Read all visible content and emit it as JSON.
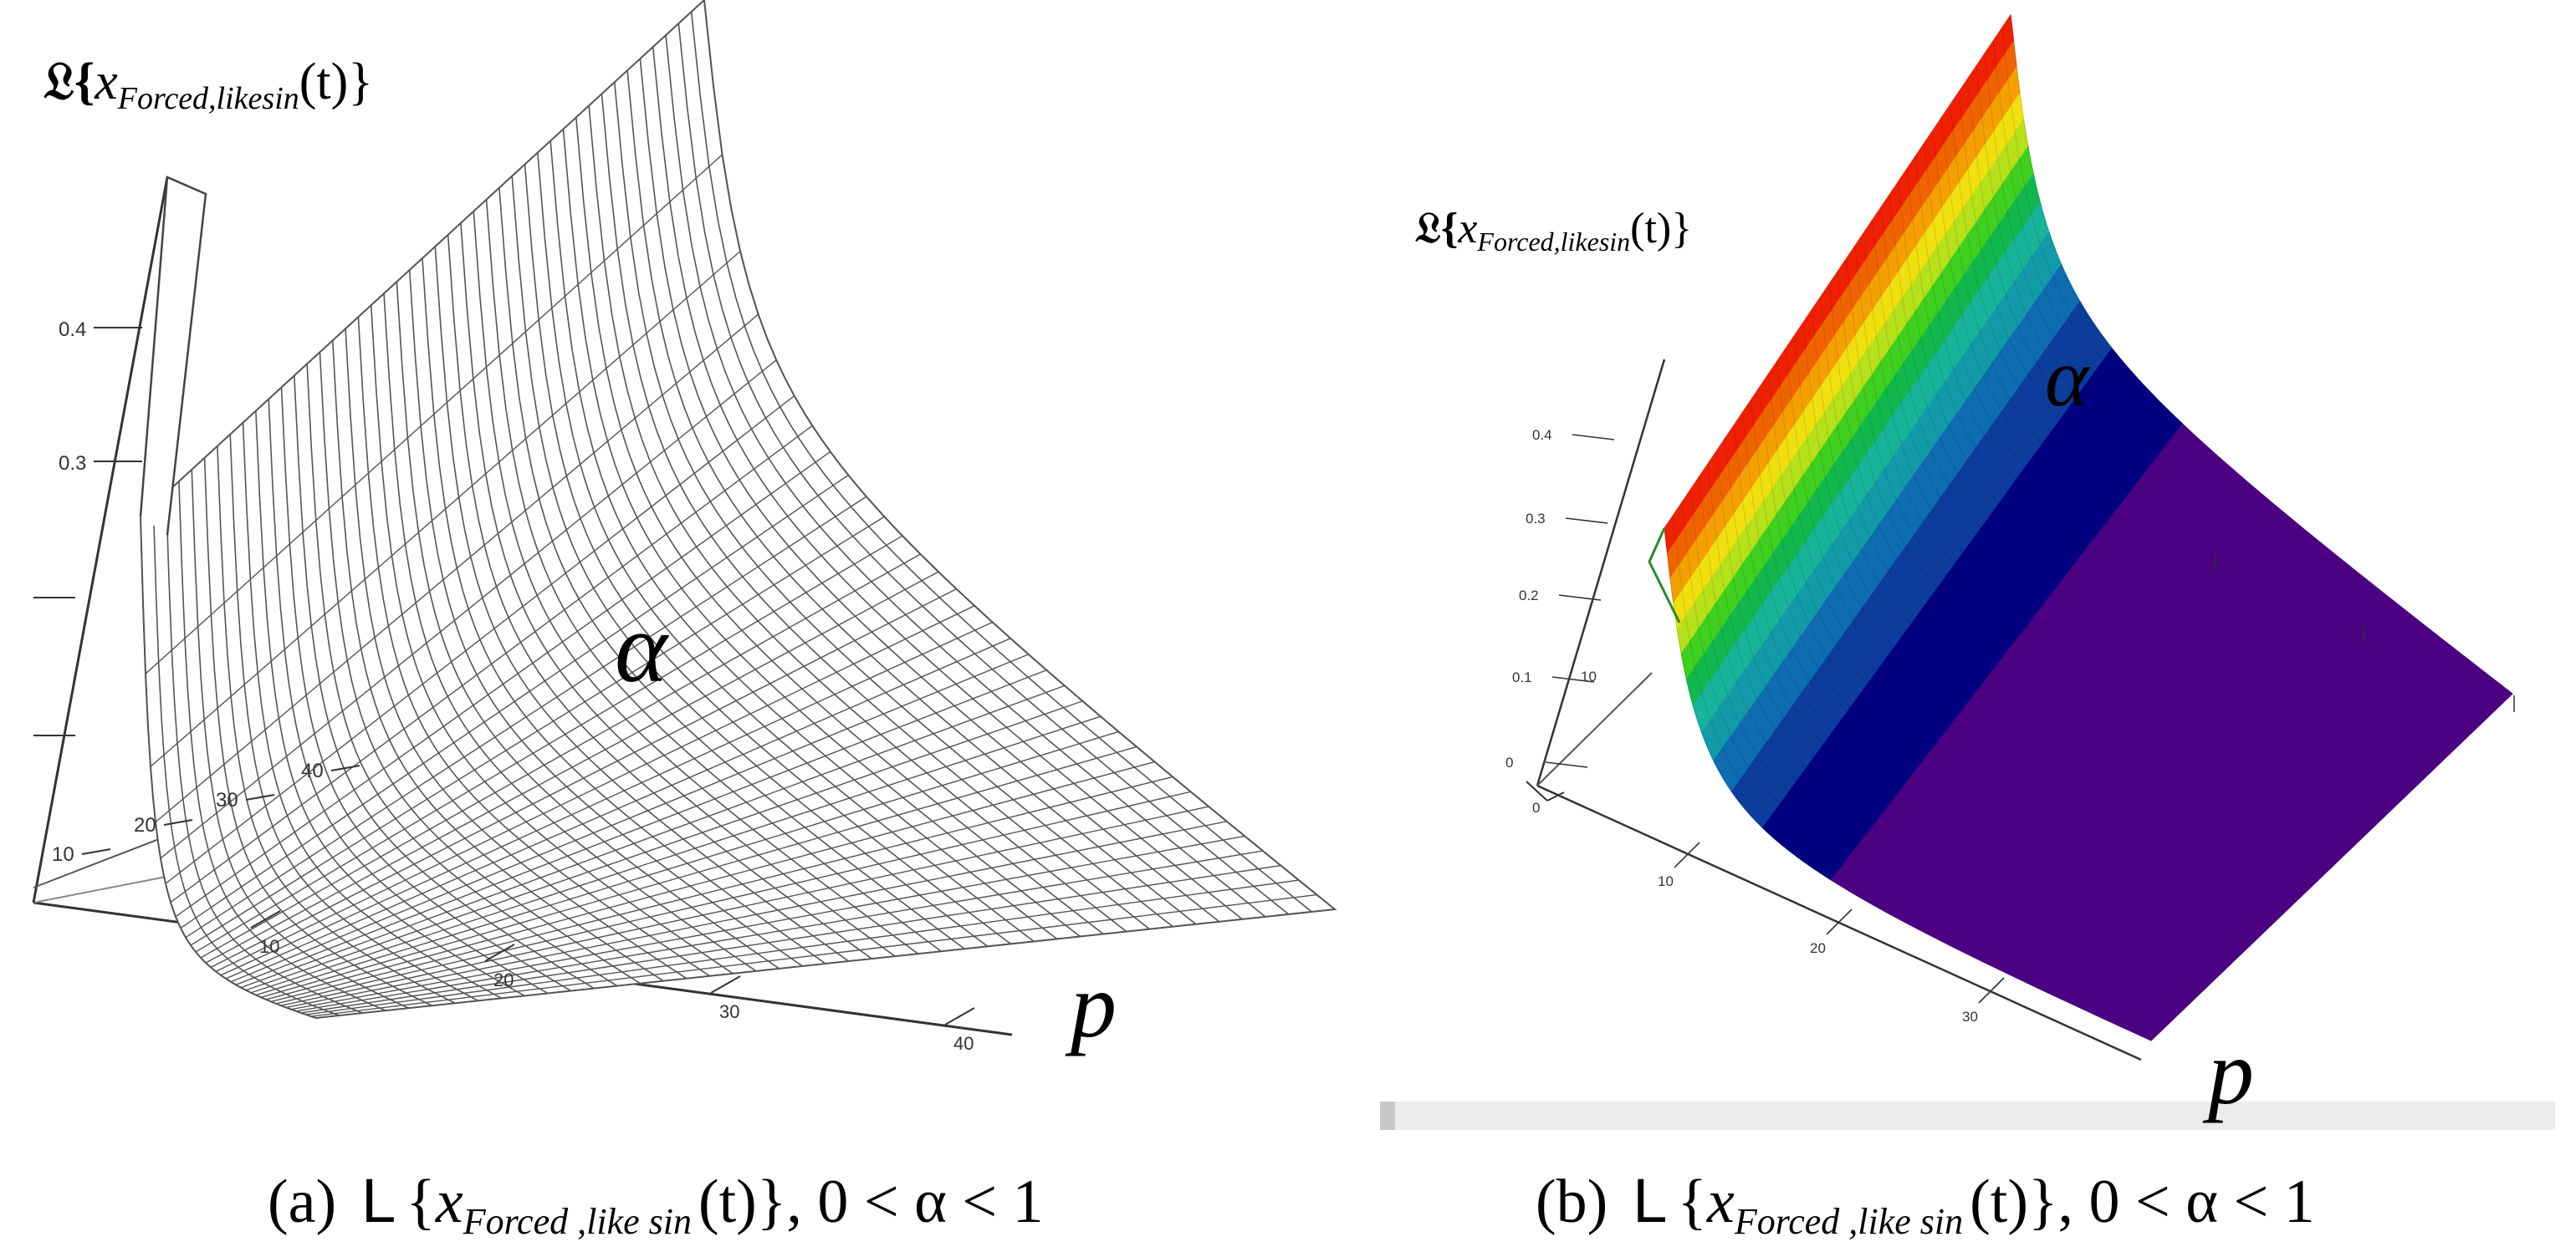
{
  "chart_data": [
    {
      "type": "surface",
      "panel_label": "(a)",
      "render_style": "wireframe",
      "z_label": {
        "prefix": "𝔏{",
        "var": "x",
        "sub": "Forced,likesin",
        "arg": "(t)",
        "suffix": "}"
      },
      "x_label": "p",
      "y_label": "α",
      "z_ticks": [
        "0.4",
        "0.3"
      ],
      "p_ticks": [
        "10",
        "20",
        "30",
        "40"
      ],
      "alpha_ticks": [
        "10",
        "20",
        "30",
        "40"
      ],
      "caption": {
        "label": "(a)",
        "op": "L",
        "var": "x",
        "sub": "Forced ,like sin",
        "arg": "(t)",
        "tail": "}, 0 < α < 1"
      },
      "colors": {
        "mesh": "#555555",
        "surface": "#ffffff",
        "axes": "#333333"
      }
    },
    {
      "type": "surface",
      "panel_label": "(b)",
      "render_style": "filled-colormap",
      "z_label": {
        "prefix": "𝔏{",
        "var": "x",
        "sub": "Forced,likesin",
        "arg": "(t)",
        "suffix": "}"
      },
      "x_label": "p",
      "y_label": "α",
      "z_ticks": [
        "0.4",
        "0.3",
        "0.2",
        "0.1",
        "0"
      ],
      "p_ticks": [
        "10",
        "20",
        "30"
      ],
      "alpha_ticks": [
        "10"
      ],
      "corner_tick": "0",
      "caption": {
        "label": "(b)",
        "op": "L",
        "var": "x",
        "sub": "Forced ,like sin",
        "arg": "(t)",
        "tail": "}, 0 < α < 1"
      },
      "colors": {
        "bands": [
          "#4b0082",
          "#000080",
          "#0c3c9c",
          "#0e6cb0",
          "#139aa8",
          "#17b39a",
          "#12b84d",
          "#3fcf1f",
          "#b6e01a",
          "#f0e010",
          "#f4a000",
          "#f06400",
          "#ee2000"
        ],
        "floor": "#4b0082"
      }
    }
  ]
}
